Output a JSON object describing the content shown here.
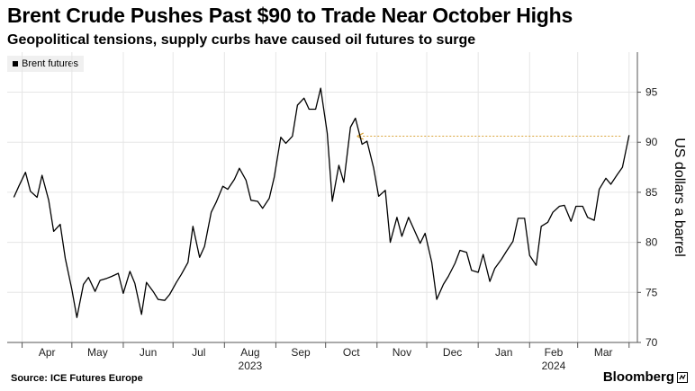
{
  "title": "Brent Crude Pushes Past $90 to Trade Near October Highs",
  "subtitle": "Geopolitical tensions, supply curbs have caused oil futures to surge",
  "source": "Source: ICE Futures Europe",
  "brand": "Bloomberg",
  "colors": {
    "line": "#000000",
    "annotation": "#d9a43a",
    "grid": "#e6e6e6",
    "axis": "#555555"
  },
  "chart_data": {
    "type": "line",
    "title": "Brent Crude Pushes Past $90 to Trade Near October Highs",
    "subtitle": "Geopolitical tensions, supply curbs have caused oil futures to surge",
    "xlabel": "",
    "ylabel": "US dollars a barrel",
    "ylim": [
      70,
      99
    ],
    "yticks": [
      70,
      75,
      80,
      85,
      90,
      95
    ],
    "grid": true,
    "legend_position": "top-left",
    "x_tick_labels": [
      "Apr",
      "May",
      "Jun",
      "Jul",
      "Aug",
      "Sep",
      "Oct",
      "Nov",
      "Dec",
      "Jan",
      "Feb",
      "Mar"
    ],
    "x_year_labels": [
      {
        "label": "2023",
        "month": "Aug"
      },
      {
        "label": "2024",
        "month": "Feb"
      }
    ],
    "annotation": {
      "type": "reference-arrow",
      "value": 90.6,
      "from": "2024-03-29",
      "to": "2023-10-20"
    },
    "series": [
      {
        "name": "Brent futures",
        "x": [
          "2023-03-27",
          "2023-03-30",
          "2023-04-03",
          "2023-04-06",
          "2023-04-10",
          "2023-04-13",
          "2023-04-17",
          "2023-04-20",
          "2023-04-24",
          "2023-04-27",
          "2023-05-01",
          "2023-05-04",
          "2023-05-08",
          "2023-05-11",
          "2023-05-15",
          "2023-05-18",
          "2023-05-22",
          "2023-05-25",
          "2023-05-29",
          "2023-06-01",
          "2023-06-05",
          "2023-06-08",
          "2023-06-12",
          "2023-06-15",
          "2023-06-19",
          "2023-06-22",
          "2023-06-26",
          "2023-06-29",
          "2023-07-03",
          "2023-07-06",
          "2023-07-10",
          "2023-07-13",
          "2023-07-17",
          "2023-07-20",
          "2023-07-24",
          "2023-07-27",
          "2023-07-31",
          "2023-08-03",
          "2023-08-07",
          "2023-08-10",
          "2023-08-14",
          "2023-08-17",
          "2023-08-21",
          "2023-08-24",
          "2023-08-28",
          "2023-08-31",
          "2023-09-04",
          "2023-09-07",
          "2023-09-11",
          "2023-09-14",
          "2023-09-18",
          "2023-09-21",
          "2023-09-25",
          "2023-09-28",
          "2023-10-02",
          "2023-10-05",
          "2023-10-09",
          "2023-10-12",
          "2023-10-16",
          "2023-10-19",
          "2023-10-23",
          "2023-10-26",
          "2023-10-30",
          "2023-11-02",
          "2023-11-06",
          "2023-11-09",
          "2023-11-13",
          "2023-11-16",
          "2023-11-20",
          "2023-11-23",
          "2023-11-27",
          "2023-11-30",
          "2023-12-04",
          "2023-12-07",
          "2023-12-11",
          "2023-12-14",
          "2023-12-18",
          "2023-12-21",
          "2023-12-25",
          "2023-12-28",
          "2024-01-01",
          "2024-01-04",
          "2024-01-08",
          "2024-01-11",
          "2024-01-15",
          "2024-01-18",
          "2024-01-22",
          "2024-01-25",
          "2024-01-29",
          "2024-02-01",
          "2024-02-05",
          "2024-02-08",
          "2024-02-12",
          "2024-02-15",
          "2024-02-19",
          "2024-02-22",
          "2024-02-26",
          "2024-02-29",
          "2024-03-04",
          "2024-03-07",
          "2024-03-11",
          "2024-03-14",
          "2024-03-18",
          "2024-03-21",
          "2024-03-25",
          "2024-03-28",
          "2024-04-01"
        ],
        "values": [
          84.5,
          85.6,
          87.0,
          85.1,
          84.5,
          86.7,
          84.2,
          81.1,
          81.8,
          78.4,
          75.3,
          72.5,
          75.8,
          76.5,
          75.1,
          76.2,
          76.4,
          76.6,
          76.9,
          74.9,
          77.1,
          75.9,
          72.8,
          76.0,
          75.1,
          74.3,
          74.2,
          74.8,
          76.0,
          76.8,
          78.0,
          81.6,
          78.5,
          79.6,
          83.0,
          84.0,
          85.6,
          85.3,
          86.3,
          87.4,
          86.2,
          84.2,
          84.1,
          83.4,
          84.4,
          86.5,
          90.5,
          89.9,
          90.6,
          93.7,
          94.4,
          93.3,
          93.3,
          95.4,
          90.9,
          84.1,
          87.7,
          86.0,
          91.5,
          92.4,
          89.8,
          90.1,
          87.4,
          84.6,
          85.2,
          80.0,
          82.5,
          80.6,
          82.5,
          81.4,
          79.9,
          80.9,
          78.0,
          74.3,
          75.8,
          76.6,
          77.9,
          79.2,
          79.0,
          77.2,
          77.0,
          78.8,
          76.1,
          77.4,
          78.3,
          79.1,
          80.1,
          82.4,
          82.4,
          78.7,
          77.7,
          81.6,
          82.0,
          83.0,
          83.6,
          83.7,
          82.1,
          83.6,
          83.6,
          82.5,
          82.2,
          85.3,
          86.4,
          85.8,
          86.8,
          87.5,
          90.7
        ]
      }
    ]
  }
}
